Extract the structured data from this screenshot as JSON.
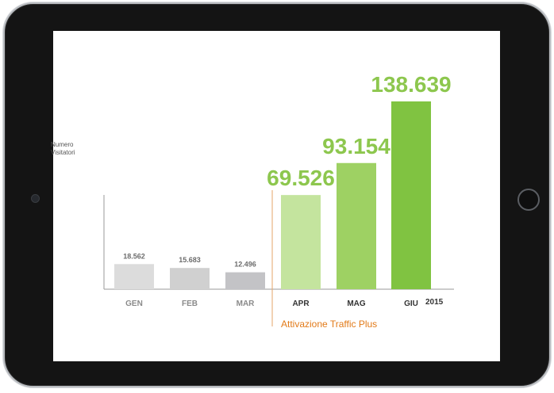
{
  "chart_data": {
    "type": "bar",
    "categories": [
      "GEN",
      "FEB",
      "MAR",
      "APR",
      "MAG",
      "GIU"
    ],
    "values": [
      18562,
      15683,
      12496,
      69526,
      93154,
      138639
    ],
    "value_labels": [
      "18.562",
      "15.683",
      "12.496",
      "69.526",
      "93.154",
      "138.639"
    ],
    "ylabel": "Numero\nVisitatori",
    "year_label": "2015",
    "annotation": "Attivazione Traffic Plus",
    "colors": {
      "pre_bars": [
        "#dcdcdc",
        "#d0d0d0",
        "#c3c3c6"
      ],
      "post_bars": [
        "#c4e49e",
        "#9ed163",
        "#80c341"
      ],
      "pre_labels": "#6d6d6d",
      "post_labels": "#8dc74e",
      "divider": "#e5a56a",
      "annotation": "#e27a18",
      "axis": "#9a9a9a"
    },
    "grid": false,
    "legend": "none"
  }
}
